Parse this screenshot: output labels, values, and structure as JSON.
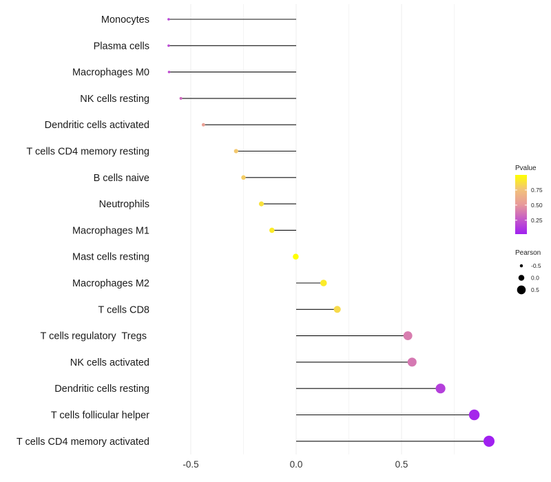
{
  "chart_data": {
    "type": "lollipop",
    "categories": [
      "Monocytes",
      "Plasma cells",
      "Macrophages M0",
      "NK cells resting",
      "Dendritic cells activated",
      "T cells CD4 memory resting",
      "B cells naive",
      "Neutrophils",
      "Macrophages M1",
      "Mast cells resting",
      "Macrophages M2",
      "T cells CD8",
      "T cells regulatory  Tregs ",
      "NK cells activated",
      "Dendritic cells resting",
      "T cells follicular helper",
      "T cells CD4 memory activated"
    ],
    "pearson": [
      -0.605,
      -0.605,
      -0.603,
      -0.547,
      -0.44,
      -0.285,
      -0.25,
      -0.165,
      -0.115,
      -0.002,
      0.13,
      0.195,
      0.53,
      0.55,
      0.685,
      0.845,
      0.915
    ],
    "pvalue": [
      0.18,
      0.2,
      0.22,
      0.32,
      0.55,
      0.78,
      0.8,
      0.88,
      0.92,
      1.0,
      0.92,
      0.85,
      0.4,
      0.38,
      0.15,
      0.05,
      0.02
    ],
    "x_ticks": [
      -0.5,
      0.0,
      0.5
    ],
    "x_tick_labels": [
      "-0.5",
      "0.0",
      "0.5"
    ],
    "xlim": [
      -0.62,
      0.95
    ],
    "legend_pvalue": {
      "title": "Pvalue",
      "ticks": [
        0.25,
        0.5,
        0.75
      ],
      "tick_labels": [
        "0.25",
        "0.50",
        "0.75"
      ],
      "range": [
        0.02,
        1.0
      ],
      "colors": [
        "#a020f0",
        "#c55ac8",
        "#e89a9a",
        "#f2c27a",
        "#ffff00"
      ]
    },
    "legend_pearson": {
      "title": "Pearson",
      "values": [
        -0.5,
        0.0,
        0.5
      ],
      "labels": [
        "-0.5",
        "0.0",
        "0.5"
      ]
    }
  }
}
